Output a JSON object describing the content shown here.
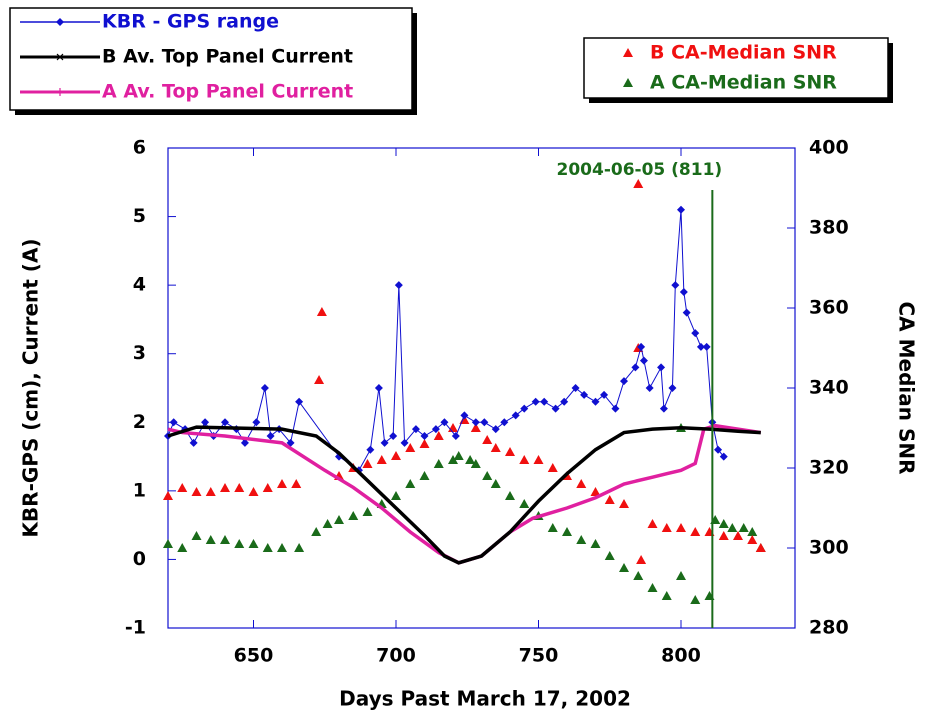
{
  "chart_data": {
    "type": "line",
    "xlabel": "Days Past March 17, 2002",
    "ylabel": "KBR-GPS (cm), Current (A)",
    "y2label": "CA Median SNR",
    "xlim": [
      620,
      840
    ],
    "xticks": [
      650,
      700,
      750,
      800
    ],
    "ylim": [
      -1,
      6
    ],
    "yticks": [
      -1,
      0,
      1,
      2,
      3,
      4,
      5,
      6
    ],
    "y2lim": [
      280,
      400
    ],
    "y2ticks": [
      280,
      300,
      320,
      340,
      360,
      380,
      400
    ],
    "annotation": {
      "text": "2004-06-05 (811)",
      "x": 811,
      "color": "#1a6b1a"
    },
    "series": [
      {
        "name": "KBR - GPS range",
        "color": "#1010d0",
        "marker": "diamond",
        "line": true,
        "legend": "left",
        "x": [
          620,
          622,
          626,
          629,
          633,
          636,
          640,
          644,
          647,
          651,
          654,
          656,
          659,
          663,
          666,
          680,
          687,
          691,
          694,
          696,
          699,
          701,
          703,
          707,
          710,
          714,
          717,
          721,
          724,
          728,
          731,
          735,
          738,
          742,
          745,
          749,
          752,
          756,
          759,
          763,
          766,
          770,
          773,
          777,
          780,
          784,
          786,
          787,
          789,
          793,
          794,
          797,
          798,
          800,
          801,
          802,
          805,
          807,
          809,
          811,
          813,
          815
        ],
        "values": [
          1.8,
          2.0,
          1.9,
          1.7,
          2.0,
          1.8,
          2.0,
          1.9,
          1.7,
          2.0,
          2.5,
          1.8,
          1.9,
          1.7,
          2.3,
          1.5,
          1.3,
          1.6,
          2.5,
          1.7,
          1.8,
          4.0,
          1.7,
          1.9,
          1.8,
          1.9,
          2.0,
          1.8,
          2.1,
          2.0,
          2.0,
          1.9,
          2.0,
          2.1,
          2.2,
          2.3,
          2.3,
          2.2,
          2.3,
          2.5,
          2.4,
          2.3,
          2.4,
          2.2,
          2.6,
          2.8,
          3.1,
          2.9,
          2.5,
          2.8,
          2.2,
          2.5,
          4.0,
          5.1,
          3.9,
          3.6,
          3.3,
          3.1,
          3.1,
          2.0,
          1.6,
          1.5
        ]
      },
      {
        "name": "B Av. Top Panel Current",
        "color": "#000000",
        "marker": "x",
        "line": true,
        "legend": "left",
        "x": [
          620,
          630,
          660,
          672,
          680,
          690,
          700,
          710,
          717,
          722,
          730,
          740,
          750,
          760,
          770,
          780,
          790,
          800,
          810,
          820,
          828
        ],
        "values": [
          1.8,
          1.93,
          1.9,
          1.8,
          1.55,
          1.15,
          0.75,
          0.35,
          0.05,
          -0.05,
          0.05,
          0.4,
          0.85,
          1.25,
          1.6,
          1.85,
          1.9,
          1.92,
          1.9,
          1.87,
          1.85
        ]
      },
      {
        "name": "A Av. Top Panel Current",
        "color": "#e020a0",
        "marker": "plus",
        "line": true,
        "legend": "left",
        "x": [
          620,
          625,
          640,
          660,
          675,
          685,
          695,
          705,
          715,
          722,
          730,
          740,
          748,
          760,
          770,
          780,
          790,
          795,
          800,
          805,
          808,
          812,
          828
        ],
        "values": [
          1.9,
          1.85,
          1.8,
          1.7,
          1.3,
          1.05,
          0.75,
          0.4,
          0.1,
          -0.05,
          0.05,
          0.4,
          0.6,
          0.75,
          0.9,
          1.1,
          1.2,
          1.25,
          1.3,
          1.4,
          1.9,
          1.95,
          1.85
        ]
      },
      {
        "name": "B CA-Median SNR",
        "color": "#f01010",
        "marker": "triangle",
        "line": false,
        "legend": "right",
        "axis": "y2",
        "x": [
          620,
          625,
          630,
          635,
          640,
          645,
          650,
          655,
          660,
          665,
          673,
          674,
          680,
          685,
          690,
          695,
          700,
          705,
          710,
          715,
          720,
          724,
          728,
          732,
          735,
          740,
          745,
          750,
          755,
          760,
          765,
          770,
          775,
          780,
          785,
          785,
          786,
          790,
          795,
          800,
          805,
          810,
          815,
          820,
          825,
          828
        ],
        "values": [
          313,
          315,
          314,
          314,
          315,
          315,
          314,
          315,
          316,
          316,
          342,
          359,
          318,
          320,
          321,
          322,
          323,
          325,
          326,
          328,
          330,
          332,
          330,
          327,
          325,
          324,
          322,
          322,
          320,
          318,
          316,
          314,
          312,
          311,
          391,
          350,
          297,
          306,
          305,
          305,
          304,
          304,
          303,
          303,
          302,
          300
        ]
      },
      {
        "name": "A CA-Median SNR",
        "color": "#1a6b1a",
        "marker": "triangle",
        "line": false,
        "legend": "right",
        "axis": "y2",
        "x": [
          620,
          625,
          630,
          635,
          640,
          645,
          650,
          655,
          660,
          666,
          672,
          676,
          680,
          685,
          690,
          695,
          700,
          705,
          710,
          715,
          720,
          722,
          726,
          728,
          732,
          735,
          740,
          745,
          750,
          755,
          760,
          765,
          770,
          775,
          780,
          785,
          790,
          795,
          800,
          800,
          805,
          810,
          812,
          815,
          818,
          822,
          825,
          828
        ],
        "values": [
          301,
          300,
          303,
          302,
          302,
          301,
          301,
          300,
          300,
          300,
          304,
          306,
          307,
          308,
          309,
          311,
          313,
          316,
          318,
          321,
          322,
          323,
          322,
          321,
          318,
          316,
          313,
          311,
          308,
          305,
          304,
          302,
          301,
          298,
          295,
          293,
          290,
          288,
          293,
          330,
          287,
          288,
          307,
          306,
          305,
          305,
          304,
          300
        ]
      }
    ]
  }
}
